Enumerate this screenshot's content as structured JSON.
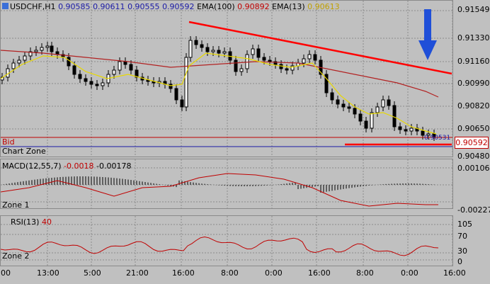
{
  "header": {
    "symbol": "USDCHF,H1",
    "open": "0.90585",
    "high": "0.90611",
    "low": "0.90555",
    "close": "0.90592",
    "ema100_label": "EMA(100)",
    "ema100_value": "0.90892",
    "ema13_label": "EMA(13)",
    "ema13_value": "0.90613"
  },
  "main": {
    "bid_label": "Bid",
    "chart_zone_label": "Chart Zone",
    "current_price": "0.90592",
    "bid_marker_value": "0.90531",
    "price_axis": [
      "0.91549",
      "0.91330",
      "0.91160",
      "0.90990",
      "0.90820",
      "0.90650",
      "0.90480"
    ]
  },
  "macd": {
    "label": "MACD(12,55,7)",
    "value1": "-0.0018",
    "value2": "-0.00178",
    "axis": [
      "0.00106",
      "-0.00227"
    ],
    "zone_label": "Zone 1"
  },
  "rsi": {
    "label": "RSI(13)",
    "value": "40",
    "axis": [
      "105",
      "70",
      "30",
      "0"
    ],
    "zone_label": "Zone 2"
  },
  "time_axis": [
    "00",
    "13:00",
    "5:00",
    "21:00",
    "16:00",
    "8:00",
    "0:00",
    "16:00",
    "8:00",
    "0:00",
    "16:00"
  ],
  "colors": {
    "trendline": "#ff0000",
    "ema100": "#b22222",
    "ema13": "#e8d800",
    "candle_up": "#ffffff",
    "arrow": "#1f4fd8"
  },
  "icons": {
    "down_arrow": "blue-down-arrow-icon"
  }
}
